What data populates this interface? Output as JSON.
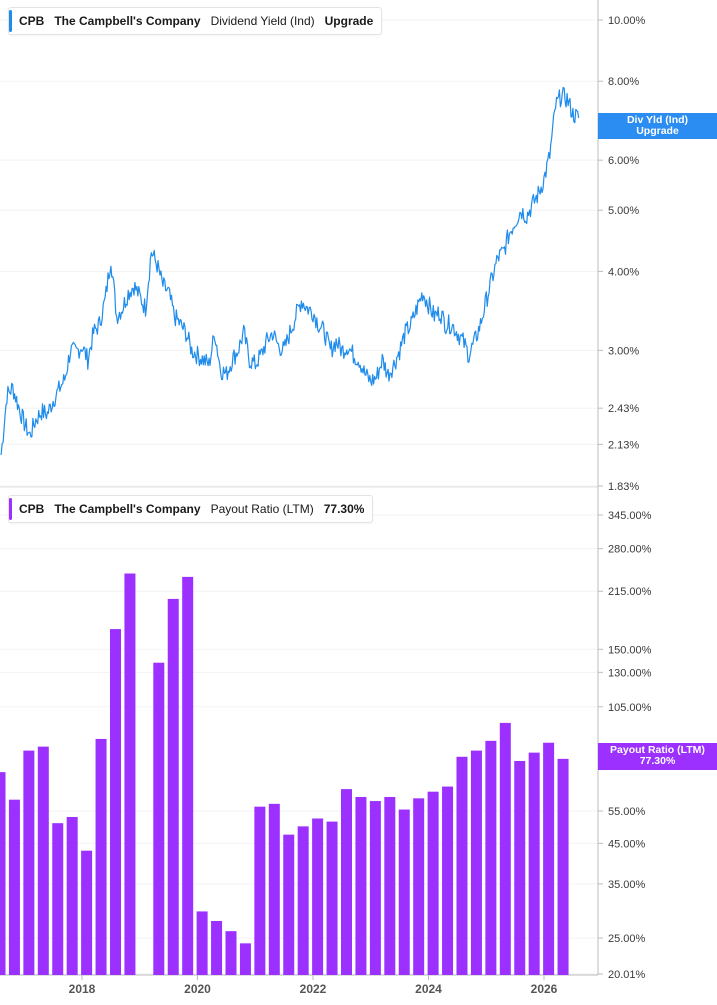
{
  "colors": {
    "dividend_line": "#1f8ceb",
    "payout_bars": "#9b30ff",
    "tag_blue": "#2b8df2",
    "tag_purple": "#9b30ff",
    "grid": "#e6e6e6",
    "axis_text": "#3a3a3a"
  },
  "top_legend": {
    "ticker": "CPB",
    "company": "The Campbell's Company",
    "metric": "Dividend Yield (Ind)",
    "value": "Upgrade"
  },
  "bottom_legend": {
    "ticker": "CPB",
    "company": "The Campbell's Company",
    "metric": "Payout Ratio (LTM)",
    "value": "77.30%"
  },
  "top_tag": {
    "line1": "Div Yld (Ind)",
    "line2": "Upgrade"
  },
  "bottom_tag": {
    "line1": "Payout Ratio (LTM)",
    "line2": "77.30%"
  },
  "top_axis_labels": [
    "10.00%",
    "8.00%",
    "6.00%",
    "5.00%",
    "4.00%",
    "3.00%",
    "2.43%",
    "2.13%",
    "1.83%"
  ],
  "bottom_axis_labels": [
    "345.00%",
    "280.00%",
    "215.00%",
    "150.00%",
    "130.00%",
    "105.00%",
    "55.00%",
    "45.00%",
    "35.00%",
    "25.00%",
    "20.01%"
  ],
  "x_axis_labels": [
    "2018",
    "2020",
    "2022",
    "2024",
    "2026"
  ],
  "chart_data": [
    {
      "type": "line",
      "title": "Dividend Yield (Ind)",
      "scale": "log",
      "ylim": [
        1.83,
        10.0
      ],
      "xlim": [
        2016.6,
        2026.6
      ],
      "grid": false,
      "series": [
        {
          "name": "Dividend Yield (Ind)",
          "x": [
            2016.6,
            2016.7,
            2016.8,
            2016.9,
            2017.0,
            2017.1,
            2017.2,
            2017.3,
            2017.4,
            2017.5,
            2017.6,
            2017.7,
            2017.8,
            2017.9,
            2018.0,
            2018.1,
            2018.2,
            2018.3,
            2018.4,
            2018.5,
            2018.6,
            2018.7,
            2018.8,
            2018.9,
            2019.0,
            2019.1,
            2019.2,
            2019.3,
            2019.4,
            2019.5,
            2019.6,
            2019.7,
            2019.8,
            2019.9,
            2020.0,
            2020.1,
            2020.2,
            2020.3,
            2020.4,
            2020.5,
            2020.6,
            2020.7,
            2020.8,
            2020.9,
            2021.0,
            2021.1,
            2021.2,
            2021.3,
            2021.4,
            2021.5,
            2021.6,
            2021.7,
            2021.8,
            2021.9,
            2022.0,
            2022.1,
            2022.2,
            2022.3,
            2022.4,
            2022.5,
            2022.6,
            2022.7,
            2022.8,
            2022.9,
            2023.0,
            2023.1,
            2023.2,
            2023.3,
            2023.4,
            2023.5,
            2023.6,
            2023.7,
            2023.8,
            2023.9,
            2024.0,
            2024.1,
            2024.2,
            2024.3,
            2024.4,
            2024.5,
            2024.6,
            2024.7,
            2024.8,
            2024.9,
            2025.0,
            2025.1,
            2025.2,
            2025.3,
            2025.4,
            2025.5,
            2025.6,
            2025.7,
            2025.8,
            2025.9,
            2026.0,
            2026.1,
            2026.2,
            2026.3,
            2026.4,
            2026.5,
            2026.6
          ],
          "values": [
            2.05,
            2.55,
            2.62,
            2.45,
            2.3,
            2.2,
            2.33,
            2.4,
            2.38,
            2.5,
            2.6,
            2.7,
            3.0,
            2.98,
            3.05,
            2.9,
            3.2,
            3.3,
            3.6,
            4.2,
            3.4,
            3.5,
            3.7,
            3.8,
            3.65,
            3.5,
            4.3,
            4.1,
            3.8,
            3.7,
            3.4,
            3.3,
            3.2,
            3.0,
            2.95,
            2.9,
            2.85,
            3.2,
            2.8,
            2.75,
            2.9,
            3.0,
            3.2,
            2.9,
            2.85,
            2.95,
            3.1,
            3.2,
            3.05,
            3.0,
            3.2,
            3.4,
            3.6,
            3.5,
            3.45,
            3.3,
            3.2,
            3.0,
            3.1,
            3.0,
            3.05,
            2.95,
            2.9,
            2.75,
            2.68,
            2.72,
            2.9,
            2.75,
            2.85,
            3.0,
            3.2,
            3.3,
            3.5,
            3.7,
            3.55,
            3.4,
            3.45,
            3.3,
            3.3,
            3.2,
            3.1,
            2.95,
            3.1,
            3.3,
            3.6,
            3.9,
            4.2,
            4.3,
            4.6,
            4.8,
            5.0,
            4.9,
            5.1,
            5.3,
            5.6,
            6.1,
            7.3,
            7.6,
            7.5,
            7.1,
            7.0
          ]
        }
      ]
    },
    {
      "type": "bar",
      "title": "Payout Ratio (LTM)",
      "scale": "log",
      "ylim": [
        20.01,
        345.0
      ],
      "xlim": [
        2016.6,
        2026.6
      ],
      "grid": false,
      "series": [
        {
          "name": "Payout Ratio (LTM)",
          "x": [
            2016.58,
            2016.83,
            2017.08,
            2017.33,
            2017.58,
            2017.83,
            2018.08,
            2018.33,
            2018.58,
            2018.83,
            2019.33,
            2019.58,
            2019.83,
            2020.08,
            2020.33,
            2020.58,
            2020.83,
            2021.08,
            2021.33,
            2021.58,
            2021.83,
            2022.08,
            2022.33,
            2022.58,
            2022.83,
            2023.08,
            2023.33,
            2023.58,
            2023.83,
            2024.08,
            2024.33,
            2024.58,
            2024.83,
            2025.08,
            2025.33,
            2025.58,
            2025.83,
            2026.08,
            2026.33
          ],
          "values": [
            70,
            59,
            80,
            82,
            51,
            53,
            43,
            86,
            170,
            240,
            138,
            205,
            235,
            29.5,
            27.8,
            26.1,
            24.2,
            56.5,
            57.5,
            47.5,
            50,
            52.5,
            51.5,
            63,
            60,
            58.5,
            60,
            55.5,
            59.5,
            62,
            64,
            77,
            80,
            85,
            95,
            75,
            79,
            84,
            76
          ]
        }
      ]
    }
  ]
}
